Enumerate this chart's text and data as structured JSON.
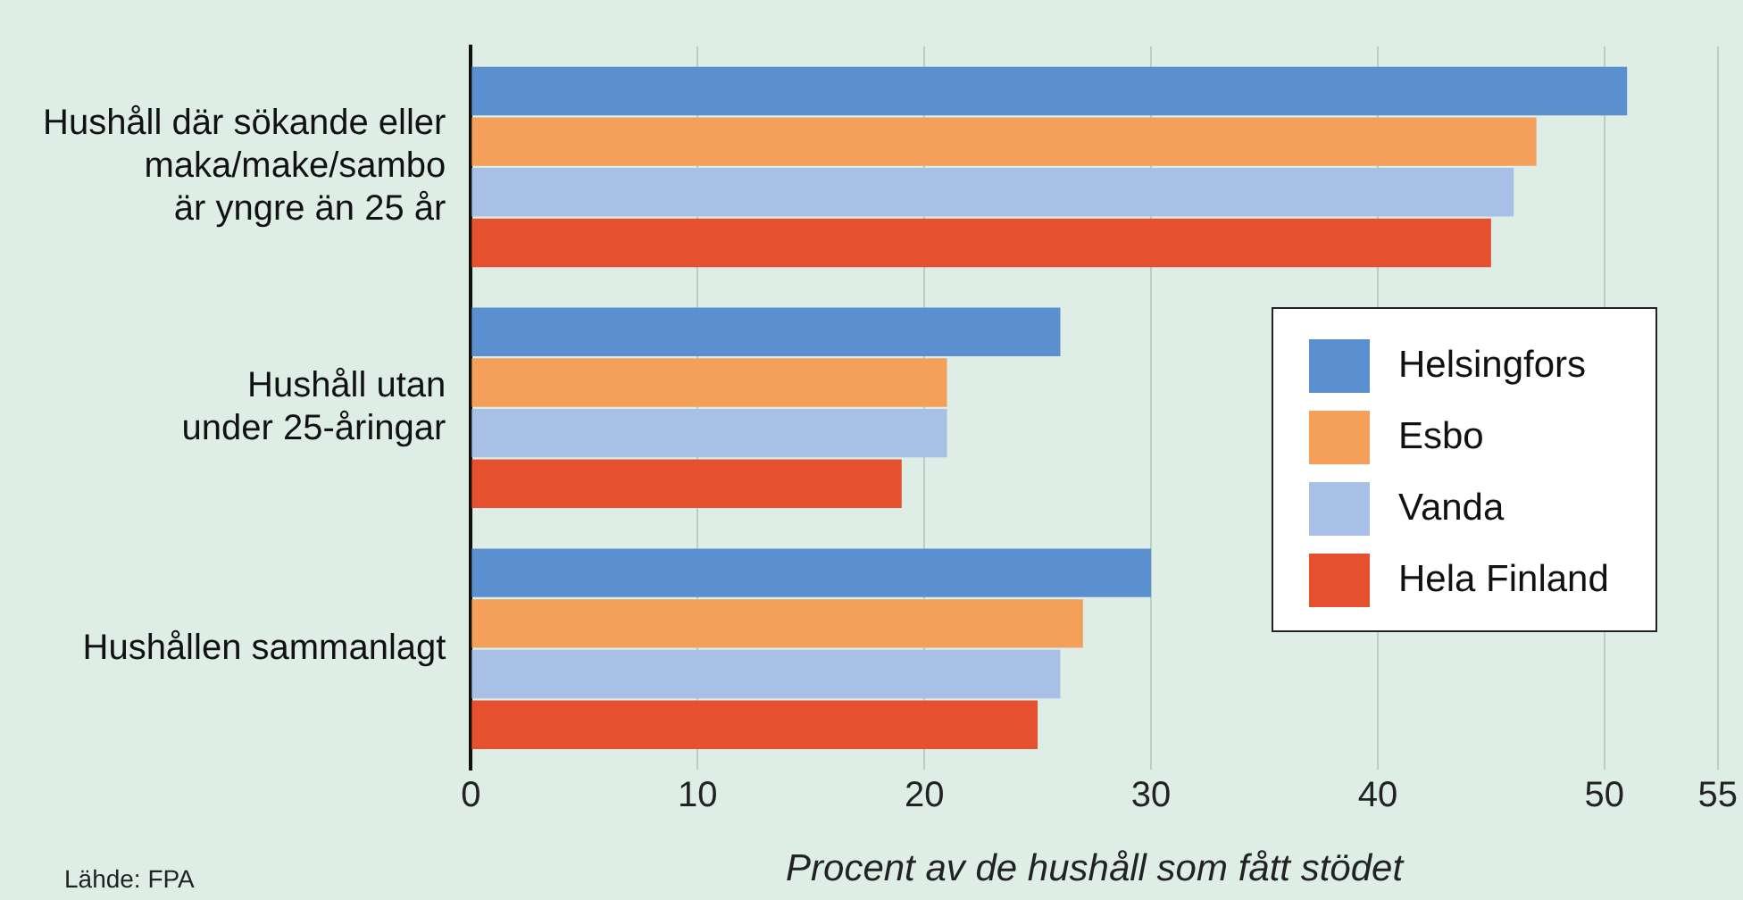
{
  "chart_data": {
    "type": "bar",
    "orientation": "horizontal",
    "xlabel": "Procent av de hushåll som fått stödet",
    "categories": [
      "Hushåll där sökande eller\nmaka/make/sambo\när yngre än 25 år",
      "Hushåll utan\nunder 25-åringar",
      "Hushållen sammanlagt"
    ],
    "series": [
      {
        "name": "Helsingfors",
        "color": "#5a8fd0",
        "values": [
          51,
          26,
          30
        ]
      },
      {
        "name": "Esbo",
        "color": "#f5a05a",
        "values": [
          47,
          21,
          27
        ]
      },
      {
        "name": "Vanda",
        "color": "#a9c0e6",
        "values": [
          46,
          21,
          26
        ]
      },
      {
        "name": "Hela Finland",
        "color": "#e5502f",
        "values": [
          45,
          19,
          25
        ]
      }
    ],
    "xlim": [
      0,
      55
    ],
    "xticks": [
      0,
      10,
      20,
      30,
      40,
      50,
      55
    ],
    "grid": "x",
    "legend": "right",
    "annotations": [
      "Lähde: FPA"
    ]
  }
}
